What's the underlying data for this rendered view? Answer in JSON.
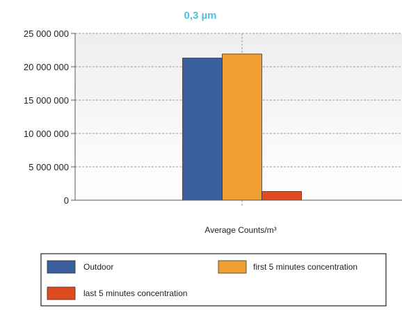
{
  "chart_data": {
    "type": "bar",
    "title": "0,3 µm",
    "xlabel": "Average Counts/m³",
    "ylabel": "",
    "categories": [
      "Average Counts/m³"
    ],
    "ylim": [
      0,
      25000000
    ],
    "yticks": [
      {
        "value": 0,
        "label": "0"
      },
      {
        "value": 5000000,
        "label": "5 000 000"
      },
      {
        "value": 10000000,
        "label": "10 000 000"
      },
      {
        "value": 15000000,
        "label": "15 000 000"
      },
      {
        "value": 20000000,
        "label": "20 000 000"
      },
      {
        "value": 25000000,
        "label": "25 000 000"
      }
    ],
    "grid": true,
    "legend_position": "bottom",
    "series": [
      {
        "name": "Outdoor",
        "values": [
          21300000
        ],
        "color": "#3b5f9c"
      },
      {
        "name": "first 5 minutes concentration",
        "values": [
          21900000
        ],
        "color": "#f0a030"
      },
      {
        "name": "last 5 minutes concentration",
        "values": [
          1300000
        ],
        "color": "#e04a20"
      }
    ]
  }
}
